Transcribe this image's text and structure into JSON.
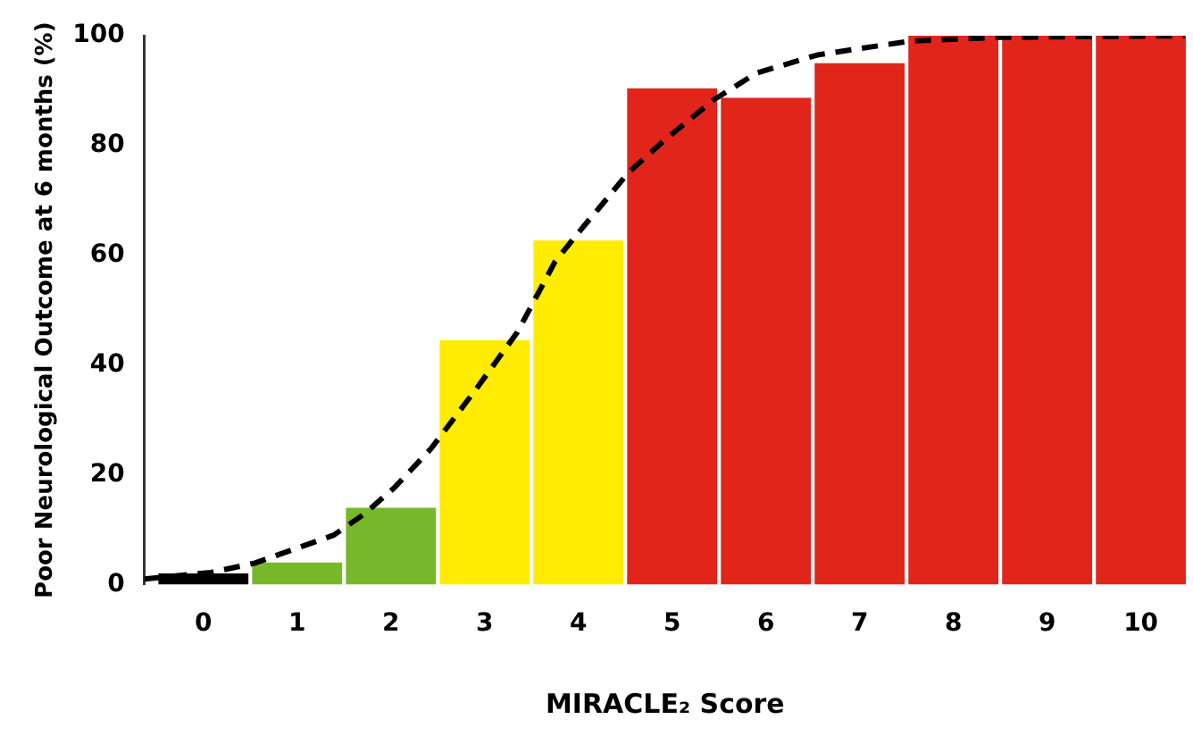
{
  "chart_data": {
    "type": "bar",
    "xlabel": "MIRACLE₂ Score",
    "ylabel": "Poor Neurological Outcome at 6 months (%)",
    "x": [
      0,
      1,
      2,
      3,
      4,
      5,
      6,
      7,
      8,
      9,
      10
    ],
    "xlim": [
      -0.63,
      10.48
    ],
    "xticks": [
      0,
      1,
      2,
      3,
      4,
      5,
      6,
      7,
      8,
      9,
      10
    ],
    "values": [
      2,
      4,
      14,
      44.5,
      62.7,
      90.4,
      88.7,
      95,
      100,
      100,
      100
    ],
    "colors": [
      "#000000",
      "#76b82a",
      "#76b82a",
      "#ffec00",
      "#ffec00",
      "#e1251b",
      "#e1251b",
      "#e1251b",
      "#e1251b",
      "#e1251b",
      "#e1251b"
    ],
    "series": [
      {
        "type": "line",
        "color": "#000000",
        "line_style": "dashed",
        "marker": "none",
        "x": [
          -0.63,
          0.08,
          0.55,
          1.39,
          1.72,
          2.04,
          2.43,
          2.9,
          3.35,
          3.75,
          3.98,
          4.24,
          4.53,
          4.92,
          5.45,
          5.9,
          6.55,
          7.53,
          8.5,
          10.47
        ],
        "values": [
          1,
          2.2,
          3.9,
          9,
          12.9,
          17.7,
          24.8,
          35.4,
          46,
          58.8,
          63.7,
          69,
          75,
          81,
          88.4,
          93.2,
          96.5,
          99,
          99.7,
          100
        ]
      }
    ],
    "ylim": [
      0,
      100
    ],
    "yticks": [
      0,
      20,
      40,
      60,
      80,
      100
    ],
    "grid": false,
    "legend": false
  }
}
